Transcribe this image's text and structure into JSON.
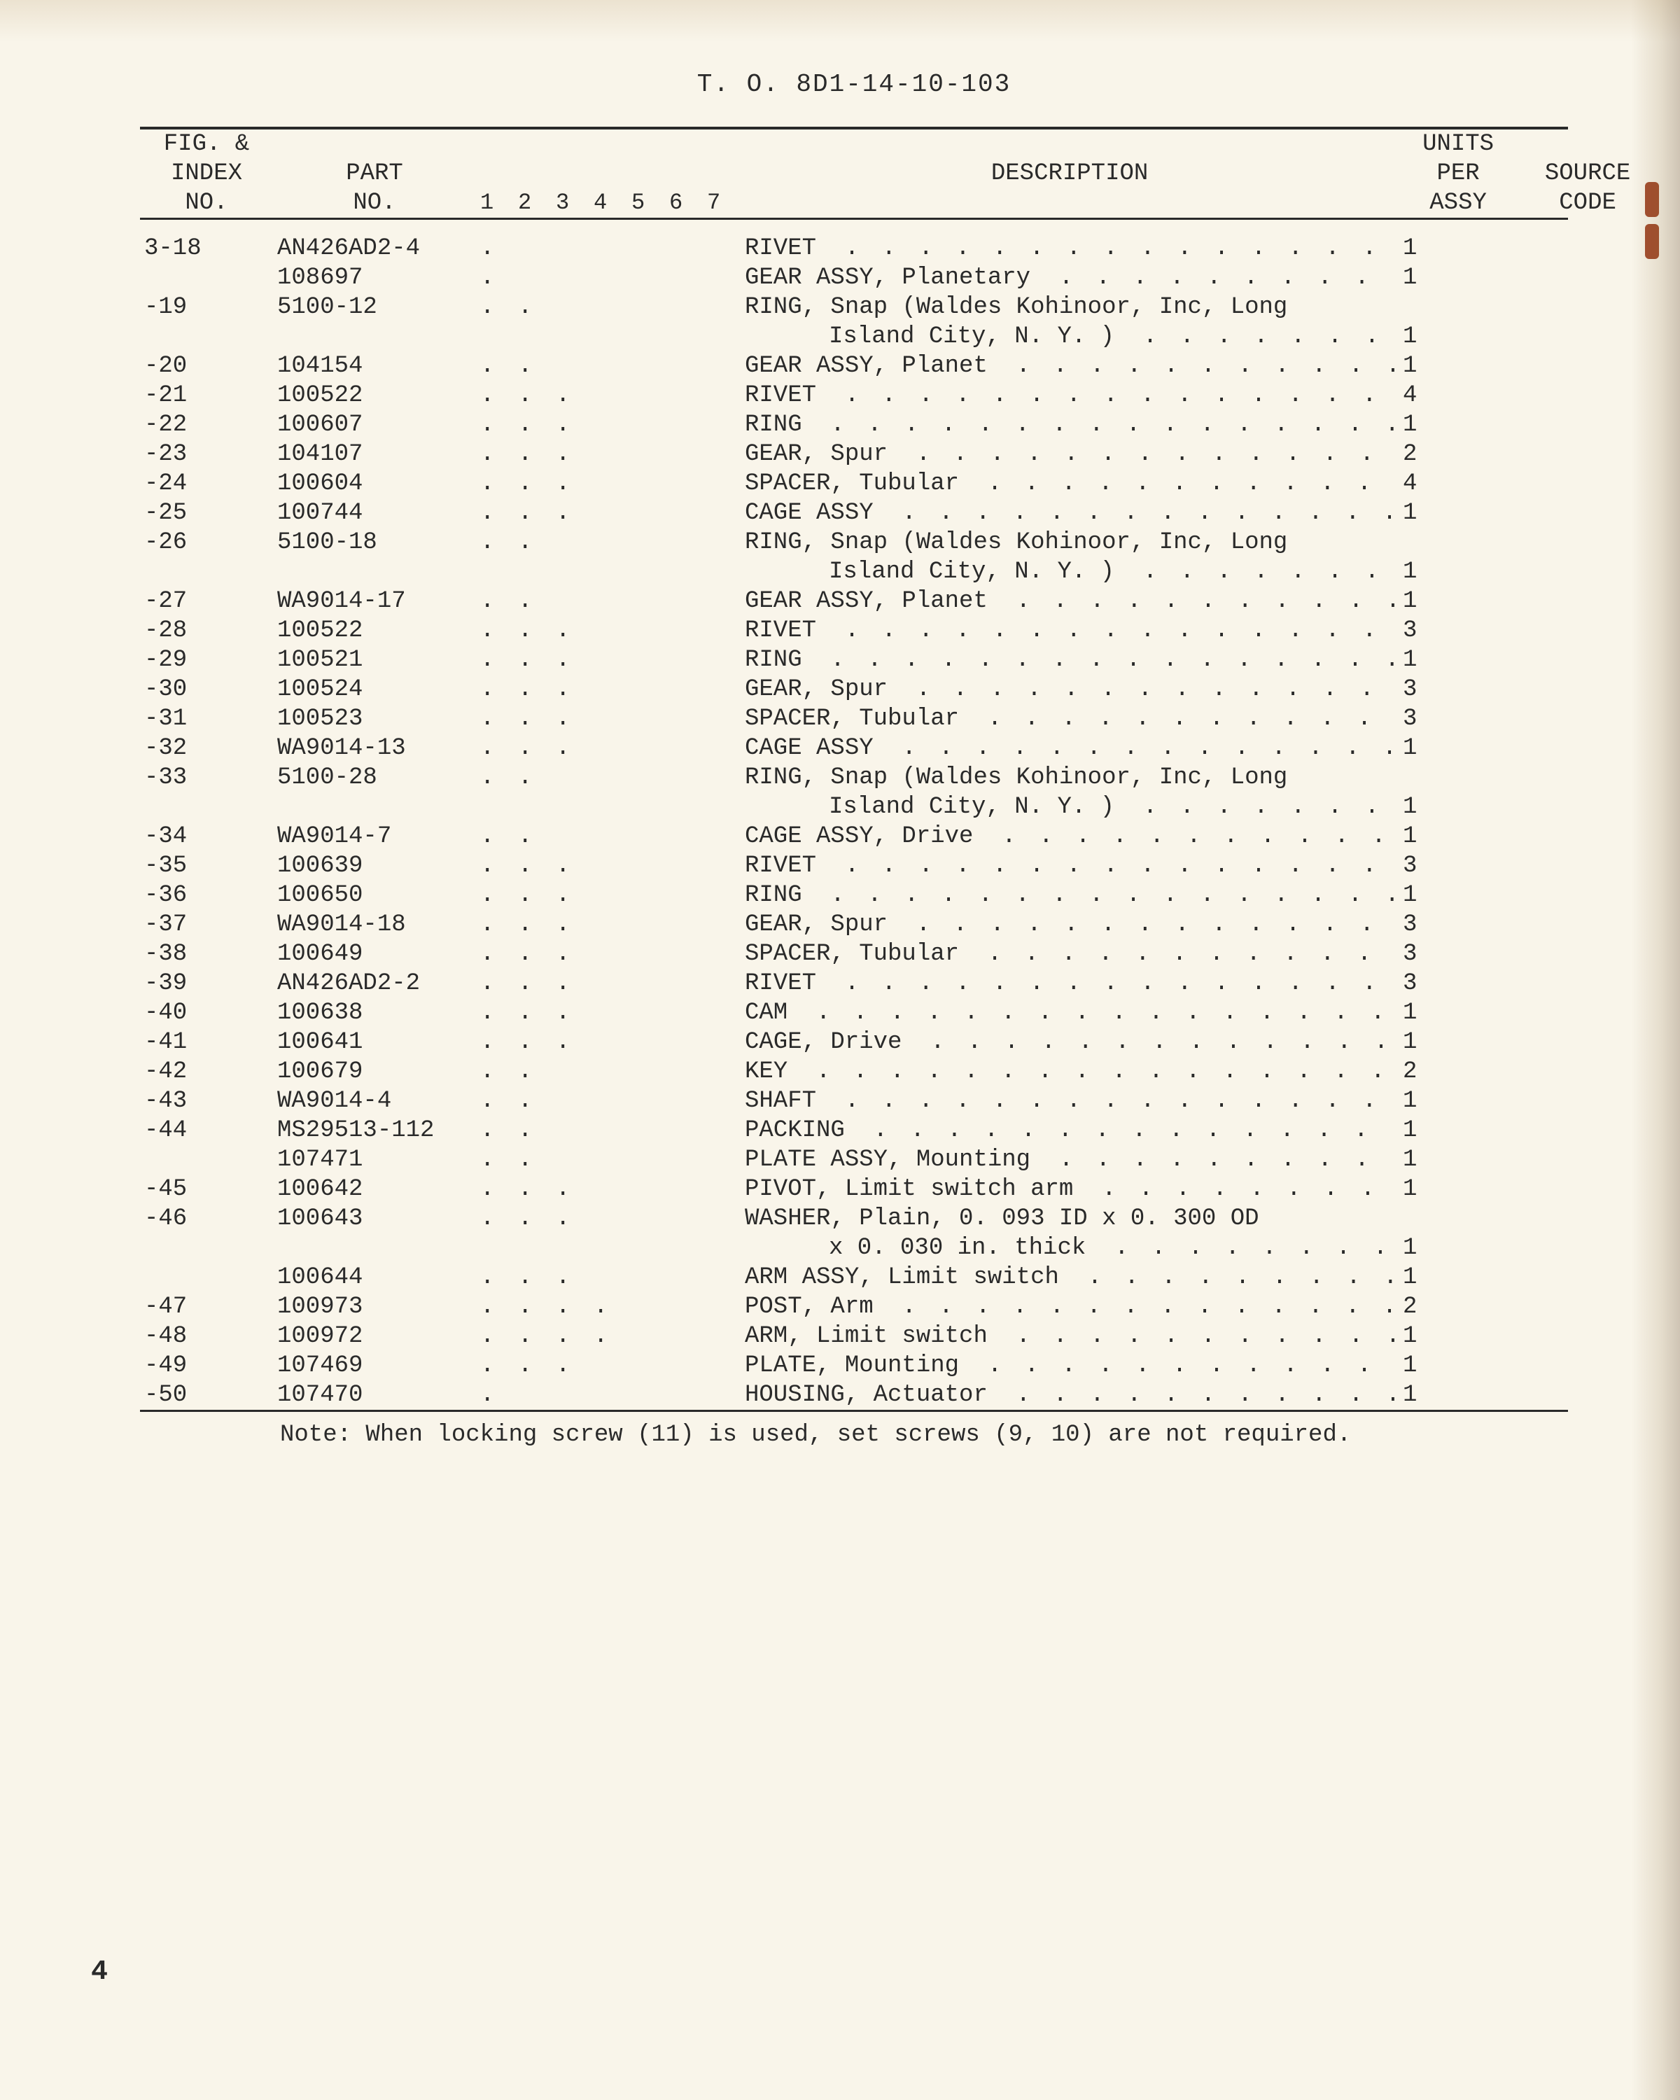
{
  "doc_header": "T. O.  8D1-14-10-103",
  "page_number": "4",
  "colors": {
    "page_bg": "#f9f5ea",
    "text": "#2a2a2a",
    "rule": "#2a2a2a"
  },
  "typography": {
    "font_family": "Courier New",
    "header_fontsize": 36,
    "body_fontsize": 34
  },
  "table": {
    "headers": {
      "fig1": "FIG. &",
      "fig2": "INDEX",
      "fig3": "NO.",
      "part1": "PART",
      "part2": "NO.",
      "desc": "DESCRIPTION",
      "units1": "UNITS",
      "units2": "PER",
      "units3": "ASSY",
      "source1": "SOURCE",
      "source2": "CODE"
    },
    "indent_guide": [
      "1",
      "2",
      "3",
      "4",
      "5",
      "6",
      "7"
    ],
    "note": "Note:  When locking screw (11) is used, set screws (9, 10) are not required.",
    "rows": [
      {
        "fig": "3-18",
        "part": "AN426AD2-4",
        "ind": 1,
        "desc": "RIVET",
        "dots": true,
        "units": "1"
      },
      {
        "fig": "",
        "part": "108697",
        "ind": 1,
        "desc": "GEAR ASSY, Planetary",
        "dots": true,
        "units": "1"
      },
      {
        "fig": "-19",
        "part": "5100-12",
        "ind": 2,
        "desc": "RING, Snap (Waldes Kohinoor, Inc, Long",
        "dots": false,
        "units": ""
      },
      {
        "cont": true,
        "desc": "Island City, N. Y. )",
        "dots": true,
        "units": "1"
      },
      {
        "fig": "-20",
        "part": "104154",
        "ind": 2,
        "desc": "GEAR ASSY, Planet",
        "dots": true,
        "units": "1"
      },
      {
        "fig": "-21",
        "part": "100522",
        "ind": 3,
        "desc": "RIVET",
        "dots": true,
        "units": "4"
      },
      {
        "fig": "-22",
        "part": "100607",
        "ind": 3,
        "desc": "RING",
        "dots": true,
        "units": "1"
      },
      {
        "fig": "-23",
        "part": "104107",
        "ind": 3,
        "desc": "GEAR, Spur",
        "dots": true,
        "units": "2"
      },
      {
        "fig": "-24",
        "part": "100604",
        "ind": 3,
        "desc": "SPACER, Tubular",
        "dots": true,
        "units": "4"
      },
      {
        "fig": "-25",
        "part": "100744",
        "ind": 3,
        "desc": "CAGE ASSY",
        "dots": true,
        "units": "1"
      },
      {
        "fig": "-26",
        "part": "5100-18",
        "ind": 2,
        "desc": "RING, Snap (Waldes Kohinoor, Inc, Long",
        "dots": false,
        "units": ""
      },
      {
        "cont": true,
        "desc": "Island City, N. Y. )",
        "dots": true,
        "units": "1"
      },
      {
        "fig": "-27",
        "part": "WA9014-17",
        "ind": 2,
        "desc": "GEAR ASSY, Planet",
        "dots": true,
        "units": "1"
      },
      {
        "fig": "-28",
        "part": "100522",
        "ind": 3,
        "desc": "RIVET",
        "dots": true,
        "units": "3"
      },
      {
        "fig": "-29",
        "part": "100521",
        "ind": 3,
        "desc": "RING",
        "dots": true,
        "units": "1"
      },
      {
        "fig": "-30",
        "part": "100524",
        "ind": 3,
        "desc": "GEAR, Spur",
        "dots": true,
        "units": "3"
      },
      {
        "fig": "-31",
        "part": "100523",
        "ind": 3,
        "desc": "SPACER, Tubular",
        "dots": true,
        "units": "3"
      },
      {
        "fig": "-32",
        "part": "WA9014-13",
        "ind": 3,
        "desc": "CAGE ASSY",
        "dots": true,
        "units": "1"
      },
      {
        "fig": "-33",
        "part": "5100-28",
        "ind": 2,
        "desc": "RING, Snap (Waldes Kohinoor, Inc, Long",
        "dots": false,
        "units": ""
      },
      {
        "cont": true,
        "desc": "Island City, N. Y. )",
        "dots": true,
        "units": "1"
      },
      {
        "fig": "-34",
        "part": "WA9014-7",
        "ind": 2,
        "desc": "CAGE ASSY, Drive",
        "dots": true,
        "units": "1"
      },
      {
        "fig": "-35",
        "part": "100639",
        "ind": 3,
        "desc": "RIVET",
        "dots": true,
        "units": "3"
      },
      {
        "fig": "-36",
        "part": "100650",
        "ind": 3,
        "desc": "RING",
        "dots": true,
        "units": "1"
      },
      {
        "fig": "-37",
        "part": "WA9014-18",
        "ind": 3,
        "desc": "GEAR, Spur",
        "dots": true,
        "units": "3"
      },
      {
        "fig": "-38",
        "part": "100649",
        "ind": 3,
        "desc": "SPACER, Tubular",
        "dots": true,
        "units": "3"
      },
      {
        "fig": "-39",
        "part": "AN426AD2-2",
        "ind": 3,
        "desc": "RIVET",
        "dots": true,
        "units": "3"
      },
      {
        "fig": "-40",
        "part": "100638",
        "ind": 3,
        "desc": "CAM",
        "dots": true,
        "units": "1"
      },
      {
        "fig": "-41",
        "part": "100641",
        "ind": 3,
        "desc": "CAGE, Drive",
        "dots": true,
        "units": "1"
      },
      {
        "fig": "-42",
        "part": "100679",
        "ind": 2,
        "desc": "KEY",
        "dots": true,
        "units": "2"
      },
      {
        "fig": "-43",
        "part": "WA9014-4",
        "ind": 2,
        "desc": "SHAFT",
        "dots": true,
        "units": "1"
      },
      {
        "fig": "-44",
        "part": "MS29513-112",
        "ind": 2,
        "desc": "PACKING",
        "dots": true,
        "units": "1"
      },
      {
        "fig": "",
        "part": "107471",
        "ind": 2,
        "desc": "PLATE ASSY, Mounting",
        "dots": true,
        "units": "1"
      },
      {
        "fig": "-45",
        "part": "100642",
        "ind": 3,
        "desc": "PIVOT, Limit switch arm",
        "dots": true,
        "units": "1"
      },
      {
        "fig": "-46",
        "part": "100643",
        "ind": 3,
        "desc": "WASHER, Plain, 0. 093 ID x 0. 300 OD",
        "dots": false,
        "units": ""
      },
      {
        "cont": true,
        "desc": "x 0. 030 in. thick",
        "dots": true,
        "units": "1"
      },
      {
        "fig": "",
        "part": "100644",
        "ind": 3,
        "desc": "ARM ASSY, Limit switch",
        "dots": true,
        "units": "1"
      },
      {
        "fig": "-47",
        "part": "100973",
        "ind": 4,
        "desc": "POST, Arm",
        "dots": true,
        "units": "2"
      },
      {
        "fig": "-48",
        "part": "100972",
        "ind": 4,
        "desc": "ARM, Limit switch",
        "dots": true,
        "units": "1"
      },
      {
        "fig": "-49",
        "part": "107469",
        "ind": 3,
        "desc": "PLATE, Mounting",
        "dots": true,
        "units": "1"
      },
      {
        "fig": "-50",
        "part": "107470",
        "ind": 1,
        "desc": "HOUSING, Actuator",
        "dots": true,
        "units": "1"
      }
    ]
  }
}
